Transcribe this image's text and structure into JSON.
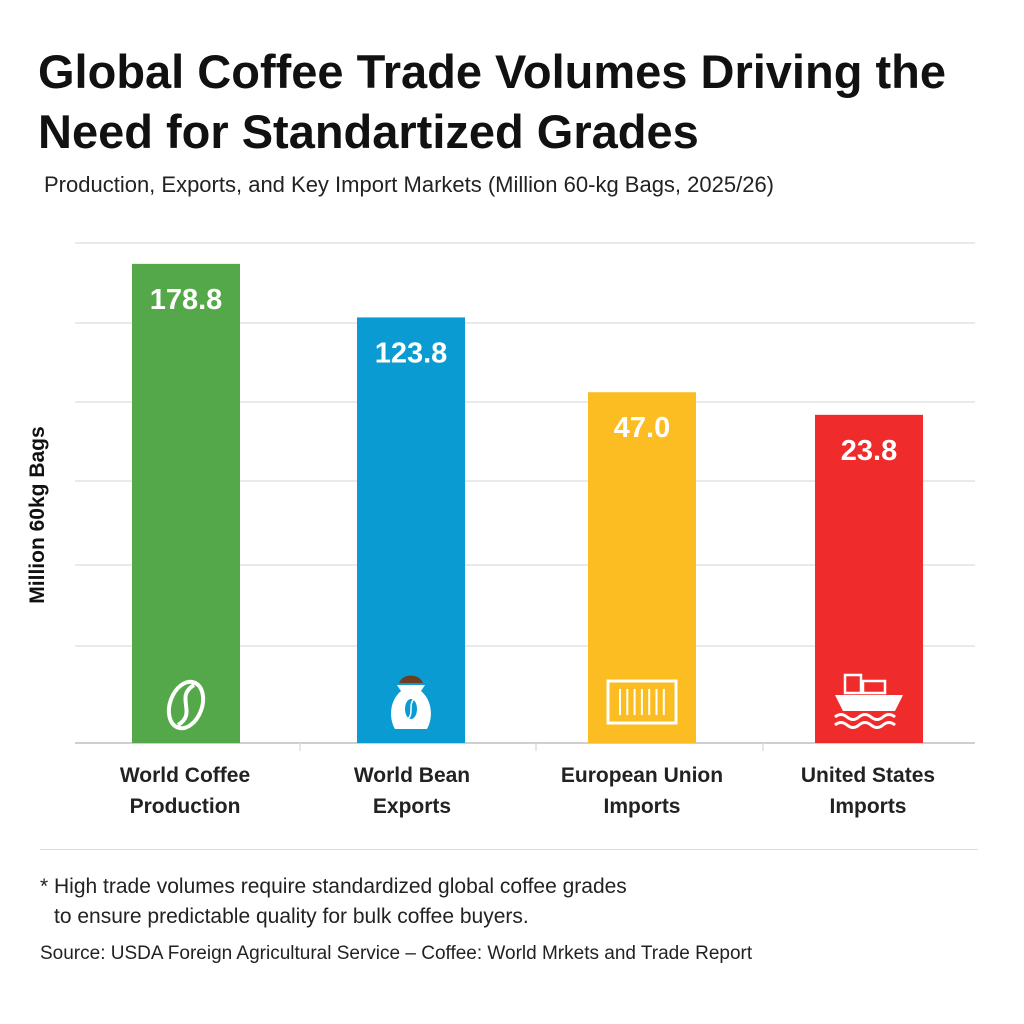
{
  "title": "Global Coffee Trade Volumes Driving the Need for Standartized Grades",
  "subtitle": "Production, Exports, and Key Import Markets (Million 60-kg Bags, 2025/26)",
  "chart_data": {
    "type": "bar",
    "ylabel": "Million 60kg Bags",
    "xlabel": "",
    "categories": [
      "World Coffee Production",
      "World Bean Exports",
      "European Union Imports",
      "United States Imports"
    ],
    "category_lines": [
      [
        "World Coffee",
        "Production"
      ],
      [
        "World Bean",
        "Exports"
      ],
      [
        "European Union",
        "Imports"
      ],
      [
        "United States",
        "Imports"
      ]
    ],
    "values": [
      178.8,
      123.8,
      47.0,
      23.8
    ],
    "data_labels": [
      "178.8",
      "123.8",
      "47.0",
      "23.8"
    ],
    "colors": [
      "#55a84a",
      "#0a9bd2",
      "#fbbd21",
      "#ef2b2b"
    ],
    "icons": [
      "coffee-bean-icon",
      "coffee-sack-icon",
      "shipping-container-icon",
      "cargo-ship-icon"
    ],
    "grid": true,
    "y_tick_labels_shown": false
  },
  "footnote": {
    "line1": "* High trade volumes require standardized global coffee grades",
    "line2": "to ensure predictable quality for bulk coffee buyers."
  },
  "source": "Source: USDA Foreign Agricultural Service – Coffee: World Mrkets and Trade Report"
}
